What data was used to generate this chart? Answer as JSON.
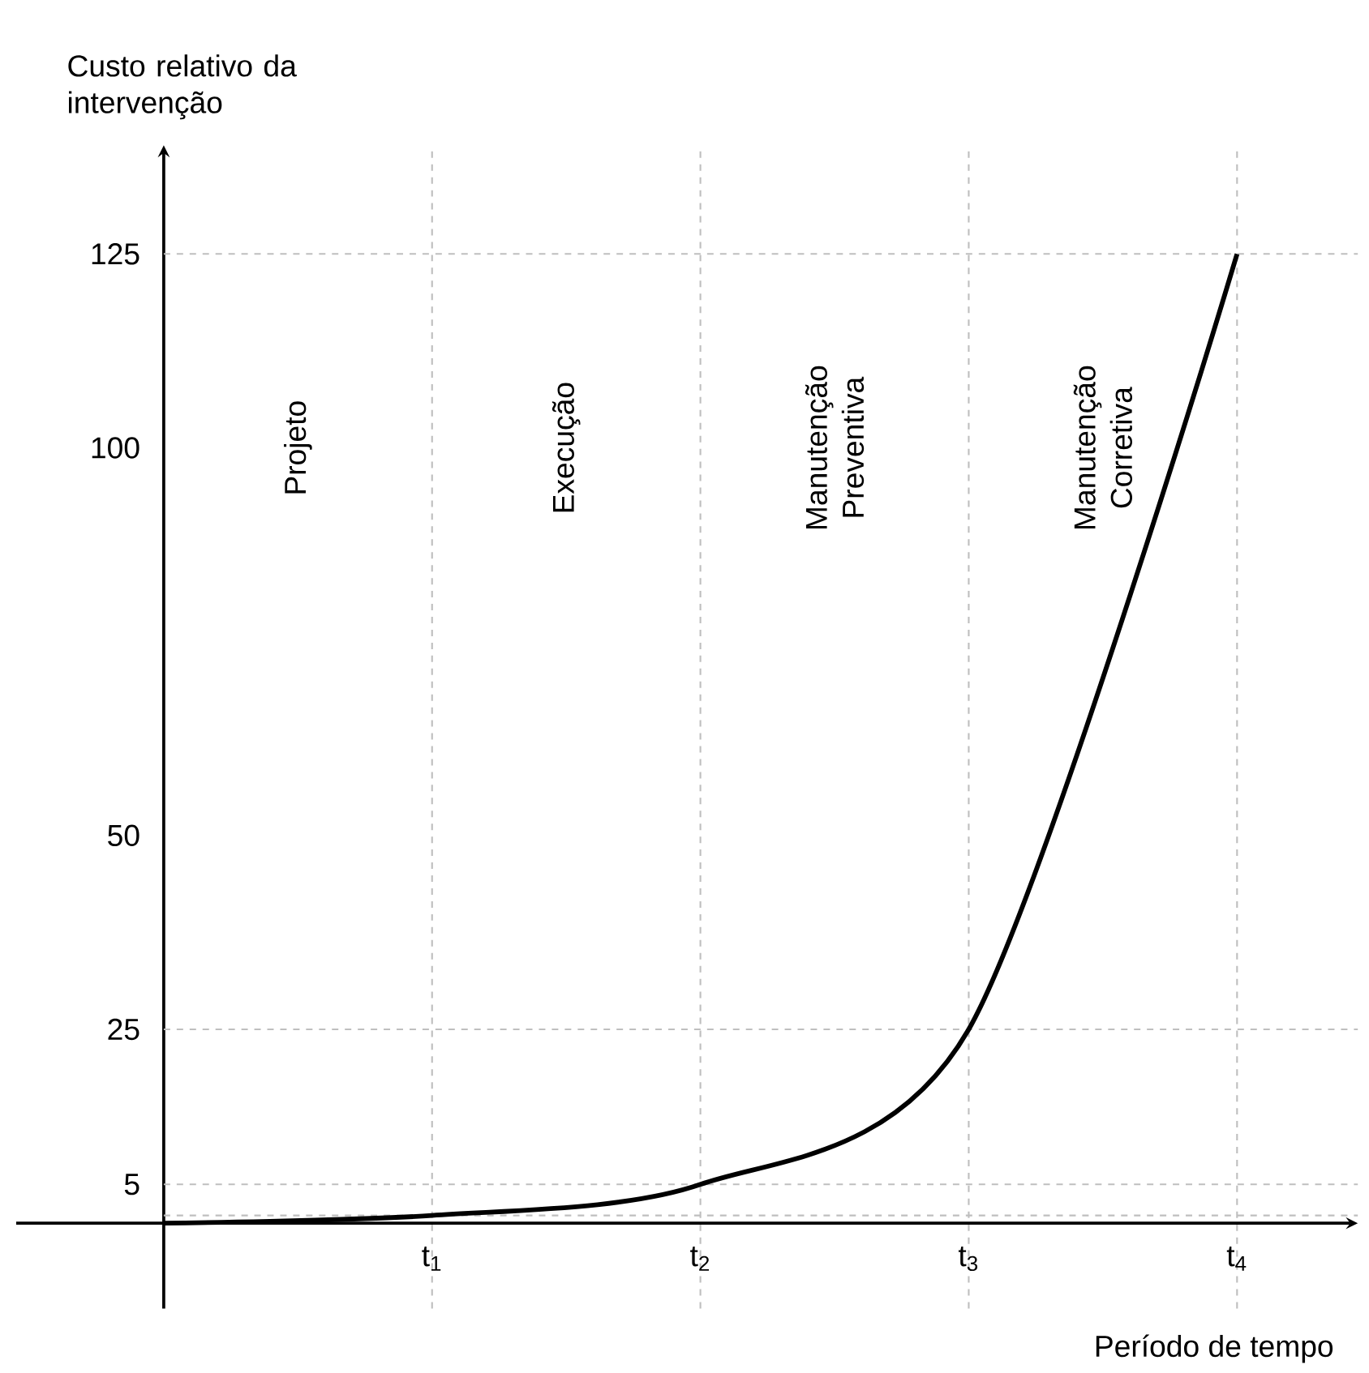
{
  "chart_data": {
    "type": "line",
    "xlabel": "Período de tempo",
    "ylabel": "Custo relativo da intervenção",
    "categories": [
      null,
      "t$_{1}$",
      "t$_{2}$",
      "t$_{3}$",
      "t$_{4}$"
    ],
    "values": [
      0,
      1,
      5,
      25,
      125
    ],
    "color": "#000000",
    "ylim": [
      -11,
      139
    ],
    "yticks": [
      5,
      25,
      50,
      100,
      125
    ],
    "grid": "x",
    "ref_lines": [
      {
        "axis": "y",
        "value": 1,
        "color": "#bfbfbf",
        "line_style": "dashed"
      },
      {
        "axis": "y",
        "value": 5,
        "color": "#bfbfbf",
        "line_style": "dashed"
      },
      {
        "axis": "y",
        "value": 25,
        "color": "#bfbfbf",
        "line_style": "dashed"
      },
      {
        "axis": "y",
        "value": 125,
        "color": "#bfbfbf",
        "line_style": "dashed"
      }
    ],
    "annotations": [
      "Projeto",
      "Execução",
      "Manutenção Preventiva",
      "Manutenção Corretiva"
    ],
    "line_style": "solid",
    "marker": "none"
  }
}
